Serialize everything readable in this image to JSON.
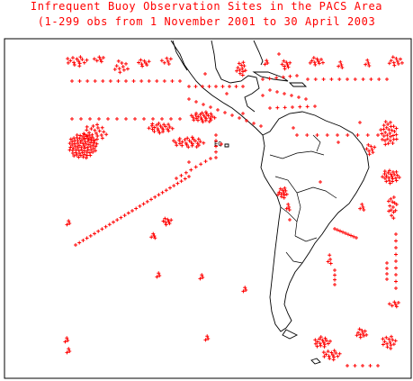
{
  "map": {
    "title": "Infrequent Buoy Observation Sites in the PACS Area",
    "subtitle": "(1-299 obs from 1 November 2001 to 30 April 2003",
    "region_label": "EQ",
    "marker_symbol": "+",
    "colors": {
      "marker": "#ff0000",
      "coast": "#000000",
      "frame": "#000000",
      "background": "#ffffff"
    }
  }
}
